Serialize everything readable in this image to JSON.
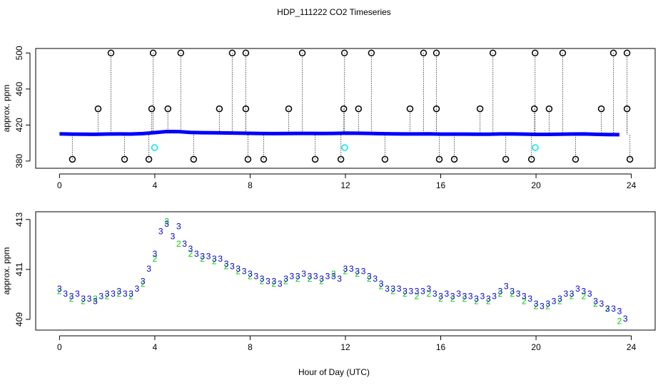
{
  "chart_data": [
    {
      "type": "scatter",
      "title": "HDP_111222  CO2 Timeseries",
      "ylabel": "approx. ppm",
      "xlim": [
        -1,
        25
      ],
      "xticks": [
        0,
        4,
        8,
        12,
        16,
        20,
        24
      ],
      "ylim": [
        372,
        505
      ],
      "yticks": [
        380,
        420,
        460,
        500
      ],
      "series": [
        {
          "color": "#0000ff",
          "line": true,
          "x": [
            0,
            0.5,
            1,
            1.5,
            2,
            2.5,
            3,
            3.5,
            4,
            4.5,
            5,
            5.5,
            6,
            6.5,
            7,
            7.5,
            8,
            8.5,
            9,
            9.5,
            10,
            10.5,
            11,
            11.5,
            12,
            12.5,
            13,
            13.5,
            14,
            14.5,
            15,
            15.5,
            16,
            16.5,
            17,
            17.5,
            18,
            18.5,
            19,
            19.5,
            20,
            20.5,
            21,
            21.5,
            22,
            22.5,
            23,
            23.5
          ],
          "values": [
            410.2,
            409.9,
            409.8,
            409.7,
            410.0,
            410.1,
            410.0,
            410.5,
            411.6,
            412.8,
            412.7,
            411.8,
            411.5,
            411.4,
            411.2,
            411.0,
            410.8,
            410.6,
            410.5,
            410.6,
            410.7,
            410.7,
            410.6,
            410.7,
            411.0,
            410.9,
            410.7,
            410.4,
            410.2,
            410.1,
            410.1,
            410.2,
            409.9,
            409.9,
            409.9,
            409.8,
            409.8,
            410.1,
            410.1,
            409.9,
            409.6,
            409.6,
            409.8,
            410.0,
            410.1,
            409.7,
            409.4,
            409.3
          ]
        },
        {
          "color": "#000000",
          "stems": true,
          "x": [
            2.16,
            3.93,
            5.09,
            7.25,
            7.82,
            10.19,
            11.96,
            13.09,
            15.28,
            15.82,
            18.19,
            19.96,
            21.12,
            23.25,
            23.82,
            1.62,
            3.87,
            4.55,
            6.71,
            7.82,
            9.62,
            11.93,
            12.55,
            14.71,
            15.82,
            17.65,
            19.93,
            20.55,
            22.74,
            23.82,
            0.54,
            2.73,
            3.75,
            5.63,
            7.91,
            8.57,
            10.73,
            11.81,
            13.66,
            15.94,
            16.57,
            18.73,
            19.81,
            21.66,
            23.94
          ],
          "values": [
            500,
            500,
            500,
            500,
            500,
            500,
            500,
            500,
            500,
            500,
            500,
            500,
            500,
            500,
            500,
            438,
            438,
            438,
            438,
            438,
            438,
            438,
            438,
            438,
            438,
            438,
            438,
            438,
            438,
            438,
            382,
            382,
            382,
            382,
            382,
            382,
            382,
            382,
            382,
            382,
            382,
            382,
            382,
            382,
            382
          ]
        },
        {
          "color": "#00e5ee",
          "x": [
            3.99,
            11.97,
            19.97
          ],
          "values": [
            395,
            395,
            395
          ]
        }
      ]
    },
    {
      "type": "scatter",
      "ylabel": "approx. ppm",
      "xlabel": "Hour of Day (UTC)",
      "xlim": [
        -1,
        25
      ],
      "xticks": [
        0,
        4,
        8,
        12,
        16,
        20,
        24
      ],
      "ylim": [
        408.57,
        413.31
      ],
      "yticks": [
        409,
        411,
        413
      ],
      "series": [
        {
          "color": "#00cd00",
          "marker": "2",
          "x": [
            0,
            0.5,
            1,
            1.5,
            2,
            2.5,
            3,
            3.5,
            4,
            4.5,
            5,
            5.5,
            6,
            6.5,
            7,
            7.5,
            8,
            8.5,
            9,
            9.5,
            10,
            10.5,
            11,
            11.5,
            12,
            12.5,
            13,
            13.5,
            14,
            14.5,
            15,
            15.5,
            16,
            16.5,
            17,
            17.5,
            18,
            18.5,
            19,
            19.5,
            20,
            20.5,
            21,
            21.5,
            22,
            22.5,
            23,
            23.5
          ],
          "values": [
            410.1,
            409.8,
            409.7,
            409.8,
            409.9,
            410.0,
            409.9,
            410.4,
            411.4,
            412.9,
            412.0,
            411.6,
            411.4,
            411.3,
            411.1,
            410.9,
            410.7,
            410.5,
            410.4,
            410.5,
            410.6,
            410.6,
            410.5,
            410.8,
            410.9,
            410.8,
            410.6,
            410.3,
            410.1,
            410.0,
            409.9,
            410.0,
            409.8,
            409.8,
            409.8,
            409.7,
            409.7,
            410.0,
            410.0,
            409.7,
            409.5,
            409.5,
            409.7,
            409.9,
            409.9,
            409.6,
            409.4,
            408.9
          ]
        },
        {
          "color": "#0000cd",
          "marker": "3",
          "x": [
            0,
            0.25,
            0.5,
            0.75,
            1,
            1.25,
            1.5,
            1.75,
            2,
            2.25,
            2.5,
            2.75,
            3,
            3.25,
            3.5,
            3.75,
            4,
            4.25,
            4.5,
            4.75,
            5,
            5.25,
            5.5,
            5.75,
            6,
            6.25,
            6.5,
            6.75,
            7,
            7.25,
            7.5,
            7.75,
            8,
            8.25,
            8.5,
            8.75,
            9,
            9.25,
            9.5,
            9.75,
            10,
            10.25,
            10.5,
            10.75,
            11,
            11.25,
            11.5,
            11.75,
            12,
            12.25,
            12.5,
            12.75,
            13,
            13.25,
            13.5,
            13.75,
            14,
            14.25,
            14.5,
            14.75,
            15,
            15.25,
            15.5,
            15.75,
            16,
            16.25,
            16.5,
            16.75,
            17,
            17.25,
            17.5,
            17.75,
            18,
            18.25,
            18.5,
            18.75,
            19,
            19.25,
            19.5,
            19.75,
            20,
            20.25,
            20.5,
            20.75,
            21,
            21.25,
            21.5,
            21.75,
            22,
            22.25,
            22.5,
            22.75,
            23,
            23.25,
            23.5,
            23.75
          ],
          "values": [
            410.2,
            410.0,
            409.9,
            410.0,
            409.8,
            409.8,
            409.7,
            409.9,
            410.0,
            410.0,
            410.1,
            410.0,
            410.0,
            410.2,
            410.5,
            411.0,
            411.6,
            412.5,
            412.8,
            412.3,
            412.7,
            412.0,
            411.8,
            411.6,
            411.5,
            411.5,
            411.4,
            411.4,
            411.2,
            411.1,
            411.0,
            410.9,
            410.8,
            410.7,
            410.6,
            410.5,
            410.5,
            410.4,
            410.6,
            410.7,
            410.7,
            410.8,
            410.7,
            410.7,
            410.6,
            410.7,
            410.7,
            410.6,
            411.0,
            411.0,
            410.9,
            410.9,
            410.7,
            410.6,
            410.4,
            410.2,
            410.2,
            410.2,
            410.1,
            410.1,
            410.1,
            410.1,
            410.2,
            410.0,
            409.9,
            410.0,
            409.9,
            410.0,
            409.9,
            409.9,
            409.8,
            409.9,
            409.8,
            409.9,
            410.1,
            410.3,
            410.1,
            410.0,
            409.9,
            409.8,
            409.6,
            409.5,
            409.6,
            409.7,
            409.8,
            410.0,
            410.0,
            410.2,
            410.1,
            410.0,
            409.7,
            409.6,
            409.4,
            409.4,
            409.3,
            409.0
          ]
        }
      ]
    }
  ]
}
